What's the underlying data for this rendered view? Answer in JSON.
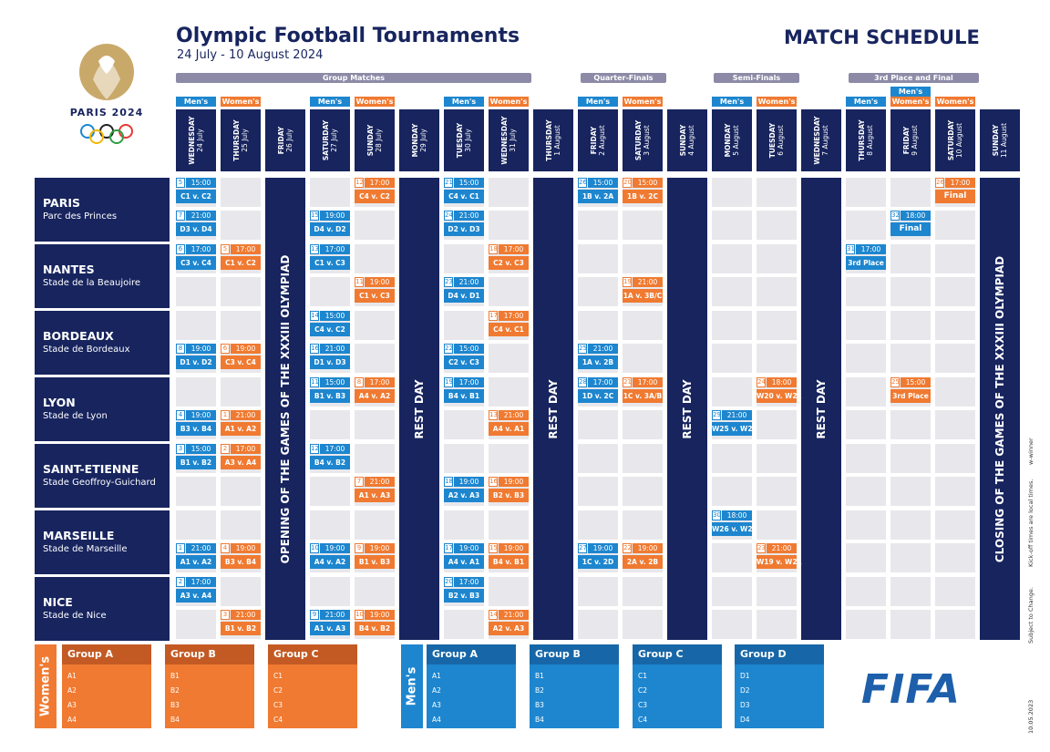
{
  "header": {
    "title": "Olympic Football Tournaments",
    "dates": "24 July - 10 August 2024",
    "schedule": "MATCH SCHEDULE",
    "logo_text": "PARIS 2024"
  },
  "stages": {
    "group": "Group Matches",
    "qf": "Quarter-Finals",
    "sf": "Semi-Finals",
    "final": "3rd Place and Final"
  },
  "tags": {
    "men": "Men's",
    "women": "Women's"
  },
  "days": [
    {
      "dow": "WEDNESDAY",
      "date": "24 July"
    },
    {
      "dow": "THURSDAY",
      "date": "25 July"
    },
    {
      "dow": "FRIDAY",
      "date": "26 July"
    },
    {
      "dow": "SATURDAY",
      "date": "27 July"
    },
    {
      "dow": "SUNDAY",
      "date": "28 July"
    },
    {
      "dow": "MONDAY",
      "date": "29 July"
    },
    {
      "dow": "TUESDAY",
      "date": "30 July"
    },
    {
      "dow": "WEDNESDAY",
      "date": "31 July"
    },
    {
      "dow": "THURSDAY",
      "date": "1 August"
    },
    {
      "dow": "FRIDAY",
      "date": "2 August"
    },
    {
      "dow": "SATURDAY",
      "date": "3 August"
    },
    {
      "dow": "SUNDAY",
      "date": "4 August"
    },
    {
      "dow": "MONDAY",
      "date": "5 August"
    },
    {
      "dow": "TUESDAY",
      "date": "6 August"
    },
    {
      "dow": "WEDNESDAY",
      "date": "7 August"
    },
    {
      "dow": "THURSDAY",
      "date": "8 August"
    },
    {
      "dow": "FRIDAY",
      "date": "9 August"
    },
    {
      "dow": "SATURDAY",
      "date": "10 August"
    },
    {
      "dow": "SUNDAY",
      "date": "11 August"
    }
  ],
  "venues": [
    {
      "city": "PARIS",
      "stadium": "Parc des Princes"
    },
    {
      "city": "NANTES",
      "stadium": "Stade de la Beaujoire"
    },
    {
      "city": "BORDEAUX",
      "stadium": "Stade de Bordeaux"
    },
    {
      "city": "LYON",
      "stadium": "Stade de Lyon"
    },
    {
      "city": "SAINT-ETIENNE",
      "stadium": "Stade Geoffroy-Guichard"
    },
    {
      "city": "MARSEILLE",
      "stadium": "Stade de Marseille"
    },
    {
      "city": "NICE",
      "stadium": "Stade de Nice"
    }
  ],
  "bars": {
    "opening": "OPENING OF THE GAMES OF THE XXXIII OLYMPIAD",
    "rest": "REST DAY",
    "closing": "CLOSING OF THE GAMES OF THE XXXIII OLYMPIAD"
  },
  "matches": [
    {
      "row": 0,
      "col": 0,
      "g": "men",
      "n": "5",
      "t": "15:00",
      "p": "C1 v. C2"
    },
    {
      "row": 1,
      "col": 0,
      "g": "men",
      "n": "7",
      "t": "21:00",
      "p": "D3 v. D4"
    },
    {
      "row": 2,
      "col": 0,
      "g": "men",
      "n": "6",
      "t": "17:00",
      "p": "C3 v. C4"
    },
    {
      "row": 5,
      "col": 0,
      "g": "men",
      "n": "8",
      "t": "19:00",
      "p": "D1 v. D2"
    },
    {
      "row": 7,
      "col": 0,
      "g": "men",
      "n": "4",
      "t": "19:00",
      "p": "B3 v. B4"
    },
    {
      "row": 8,
      "col": 0,
      "g": "men",
      "n": "3",
      "t": "15:00",
      "p": "B1 v. B2"
    },
    {
      "row": 11,
      "col": 0,
      "g": "men",
      "n": "1",
      "t": "21:00",
      "p": "A1 v. A2"
    },
    {
      "row": 12,
      "col": 0,
      "g": "men",
      "n": "2",
      "t": "17:00",
      "p": "A3 v. A4"
    },
    {
      "row": 2,
      "col": 1,
      "g": "women",
      "n": "5",
      "t": "17:00",
      "p": "C1 v. C2"
    },
    {
      "row": 5,
      "col": 1,
      "g": "women",
      "n": "6",
      "t": "19:00",
      "p": "C3 v. C4"
    },
    {
      "row": 7,
      "col": 1,
      "g": "women",
      "n": "1",
      "t": "21:00",
      "p": "A1 v. A2"
    },
    {
      "row": 8,
      "col": 1,
      "g": "women",
      "n": "2",
      "t": "17:00",
      "p": "A3 v. A4"
    },
    {
      "row": 11,
      "col": 1,
      "g": "women",
      "n": "4",
      "t": "19:00",
      "p": "B3 v. B4"
    },
    {
      "row": 13,
      "col": 1,
      "g": "women",
      "n": "3",
      "t": "21:00",
      "p": "B1 v. B2"
    },
    {
      "row": 1,
      "col": 3,
      "g": "men",
      "n": "15",
      "t": "19:00",
      "p": "D4 v. D2"
    },
    {
      "row": 2,
      "col": 3,
      "g": "men",
      "n": "13",
      "t": "17:00",
      "p": "C1 v. C3"
    },
    {
      "row": 4,
      "col": 3,
      "g": "men",
      "n": "14",
      "t": "15:00",
      "p": "C4 v. C2"
    },
    {
      "row": 5,
      "col": 3,
      "g": "men",
      "n": "16",
      "t": "21:00",
      "p": "D1 v. D3"
    },
    {
      "row": 6,
      "col": 3,
      "g": "men",
      "n": "11",
      "t": "15:00",
      "p": "B1 v. B3"
    },
    {
      "row": 8,
      "col": 3,
      "g": "men",
      "n": "12",
      "t": "17:00",
      "p": "B4 v. B2"
    },
    {
      "row": 11,
      "col": 3,
      "g": "men",
      "n": "10",
      "t": "19:00",
      "p": "A4 v. A2"
    },
    {
      "row": 13,
      "col": 3,
      "g": "men",
      "n": "9",
      "t": "21:00",
      "p": "A1 v. A3"
    },
    {
      "row": 0,
      "col": 4,
      "g": "women",
      "n": "12",
      "t": "17:00",
      "p": "C4 v. C2"
    },
    {
      "row": 3,
      "col": 4,
      "g": "women",
      "n": "11",
      "t": "19:00",
      "p": "C1 v. C3"
    },
    {
      "row": 6,
      "col": 4,
      "g": "women",
      "n": "8",
      "t": "17:00",
      "p": "A4 v. A2"
    },
    {
      "row": 9,
      "col": 4,
      "g": "women",
      "n": "7",
      "t": "21:00",
      "p": "A1 v. A3"
    },
    {
      "row": 11,
      "col": 4,
      "g": "women",
      "n": "9",
      "t": "19:00",
      "p": "B1 v. B3"
    },
    {
      "row": 13,
      "col": 4,
      "g": "women",
      "n": "10",
      "t": "19:00",
      "p": "B4 v. B2"
    },
    {
      "row": 0,
      "col": 6,
      "g": "men",
      "n": "21",
      "t": "15:00",
      "p": "C4 v. C1"
    },
    {
      "row": 1,
      "col": 6,
      "g": "men",
      "n": "24",
      "t": "21:00",
      "p": "D2 v. D3"
    },
    {
      "row": 3,
      "col": 6,
      "g": "men",
      "n": "23",
      "t": "21:00",
      "p": "D4 v. D1"
    },
    {
      "row": 5,
      "col": 6,
      "g": "men",
      "n": "22",
      "t": "15:00",
      "p": "C2 v. C3"
    },
    {
      "row": 6,
      "col": 6,
      "g": "men",
      "n": "19",
      "t": "17:00",
      "p": "B4 v. B1"
    },
    {
      "row": 9,
      "col": 6,
      "g": "men",
      "n": "18",
      "t": "19:00",
      "p": "A2 v. A3"
    },
    {
      "row": 11,
      "col": 6,
      "g": "men",
      "n": "17",
      "t": "19:00",
      "p": "A4 v. A1"
    },
    {
      "row": 12,
      "col": 6,
      "g": "men",
      "n": "20",
      "t": "17:00",
      "p": "B2 v. B3"
    },
    {
      "row": 2,
      "col": 7,
      "g": "women",
      "n": "18",
      "t": "17:00",
      "p": "C2 v. C3"
    },
    {
      "row": 4,
      "col": 7,
      "g": "women",
      "n": "17",
      "t": "17:00",
      "p": "C4 v. C1"
    },
    {
      "row": 7,
      "col": 7,
      "g": "women",
      "n": "13",
      "t": "21:00",
      "p": "A4 v. A1"
    },
    {
      "row": 9,
      "col": 7,
      "g": "women",
      "n": "16",
      "t": "19:00",
      "p": "B2 v. B3"
    },
    {
      "row": 11,
      "col": 7,
      "g": "women",
      "n": "15",
      "t": "19:00",
      "p": "B4 v. B1"
    },
    {
      "row": 13,
      "col": 7,
      "g": "women",
      "n": "14",
      "t": "21:00",
      "p": "A2 v. A3"
    },
    {
      "row": 0,
      "col": 9,
      "g": "men",
      "n": "26",
      "t": "15:00",
      "p": "1B v. 2A"
    },
    {
      "row": 5,
      "col": 9,
      "g": "men",
      "n": "25",
      "t": "21:00",
      "p": "1A v. 2B"
    },
    {
      "row": 6,
      "col": 9,
      "g": "men",
      "n": "28",
      "t": "17:00",
      "p": "1D v. 2C"
    },
    {
      "row": 11,
      "col": 9,
      "g": "men",
      "n": "27",
      "t": "19:00",
      "p": "1C v. 2D"
    },
    {
      "row": 0,
      "col": 10,
      "g": "women",
      "n": "20",
      "t": "15:00",
      "p": "1B v. 2C"
    },
    {
      "row": 3,
      "col": 10,
      "g": "women",
      "n": "19",
      "t": "21:00",
      "p": "1A v. 3B/C"
    },
    {
      "row": 6,
      "col": 10,
      "g": "women",
      "n": "21",
      "t": "17:00",
      "p": "1C v. 3A/B"
    },
    {
      "row": 11,
      "col": 10,
      "g": "women",
      "n": "22",
      "t": "19:00",
      "p": "2A v. 2B"
    },
    {
      "row": 7,
      "col": 12,
      "g": "men",
      "n": "29",
      "t": "21:00",
      "p": "W25 v. W27"
    },
    {
      "row": 10,
      "col": 12,
      "g": "men",
      "n": "30",
      "t": "18:00",
      "p": "W26 v. W28"
    },
    {
      "row": 6,
      "col": 13,
      "g": "women",
      "n": "24",
      "t": "18:00",
      "p": "W20 v. W22"
    },
    {
      "row": 11,
      "col": 13,
      "g": "women",
      "n": "23",
      "t": "21:00",
      "p": "W19 v. W21"
    },
    {
      "row": 2,
      "col": 15,
      "g": "men",
      "n": "31",
      "t": "17:00",
      "p": "3rd Place"
    },
    {
      "row": 1,
      "col": 16,
      "g": "men",
      "n": "32",
      "t": "18:00",
      "p": "Final",
      "big": true
    },
    {
      "row": 6,
      "col": 16,
      "g": "women",
      "n": "25",
      "t": "15:00",
      "p": "3rd Place"
    },
    {
      "row": 0,
      "col": 17,
      "g": "women",
      "n": "26",
      "t": "17:00",
      "p": "Final",
      "big": true
    }
  ],
  "women_label": "Women's",
  "men_label": "Men's",
  "women_groups": [
    {
      "name": "Group A",
      "teams": [
        "A1",
        "A2",
        "A3",
        "A4"
      ]
    },
    {
      "name": "Group B",
      "teams": [
        "B1",
        "B2",
        "B3",
        "B4"
      ]
    },
    {
      "name": "Group C",
      "teams": [
        "C1",
        "C2",
        "C3",
        "C4"
      ]
    }
  ],
  "men_groups": [
    {
      "name": "Group A",
      "teams": [
        "A1",
        "A2",
        "A3",
        "A4"
      ]
    },
    {
      "name": "Group B",
      "teams": [
        "B1",
        "B2",
        "B3",
        "B4"
      ]
    },
    {
      "name": "Group C",
      "teams": [
        "C1",
        "C2",
        "C3",
        "C4"
      ]
    },
    {
      "name": "Group D",
      "teams": [
        "D1",
        "D2",
        "D3",
        "D4"
      ]
    }
  ],
  "fifa": "FIFA",
  "side_notes": {
    "note1": "Subject to Change.",
    "note2": "Kick-off times are local times.",
    "note3": "w-winner",
    "date": "10.05.2023"
  },
  "colors": {
    "navy": "#17245e",
    "men": "#1d86cf",
    "women": "#f07a31",
    "gold": "#c9a96a"
  }
}
